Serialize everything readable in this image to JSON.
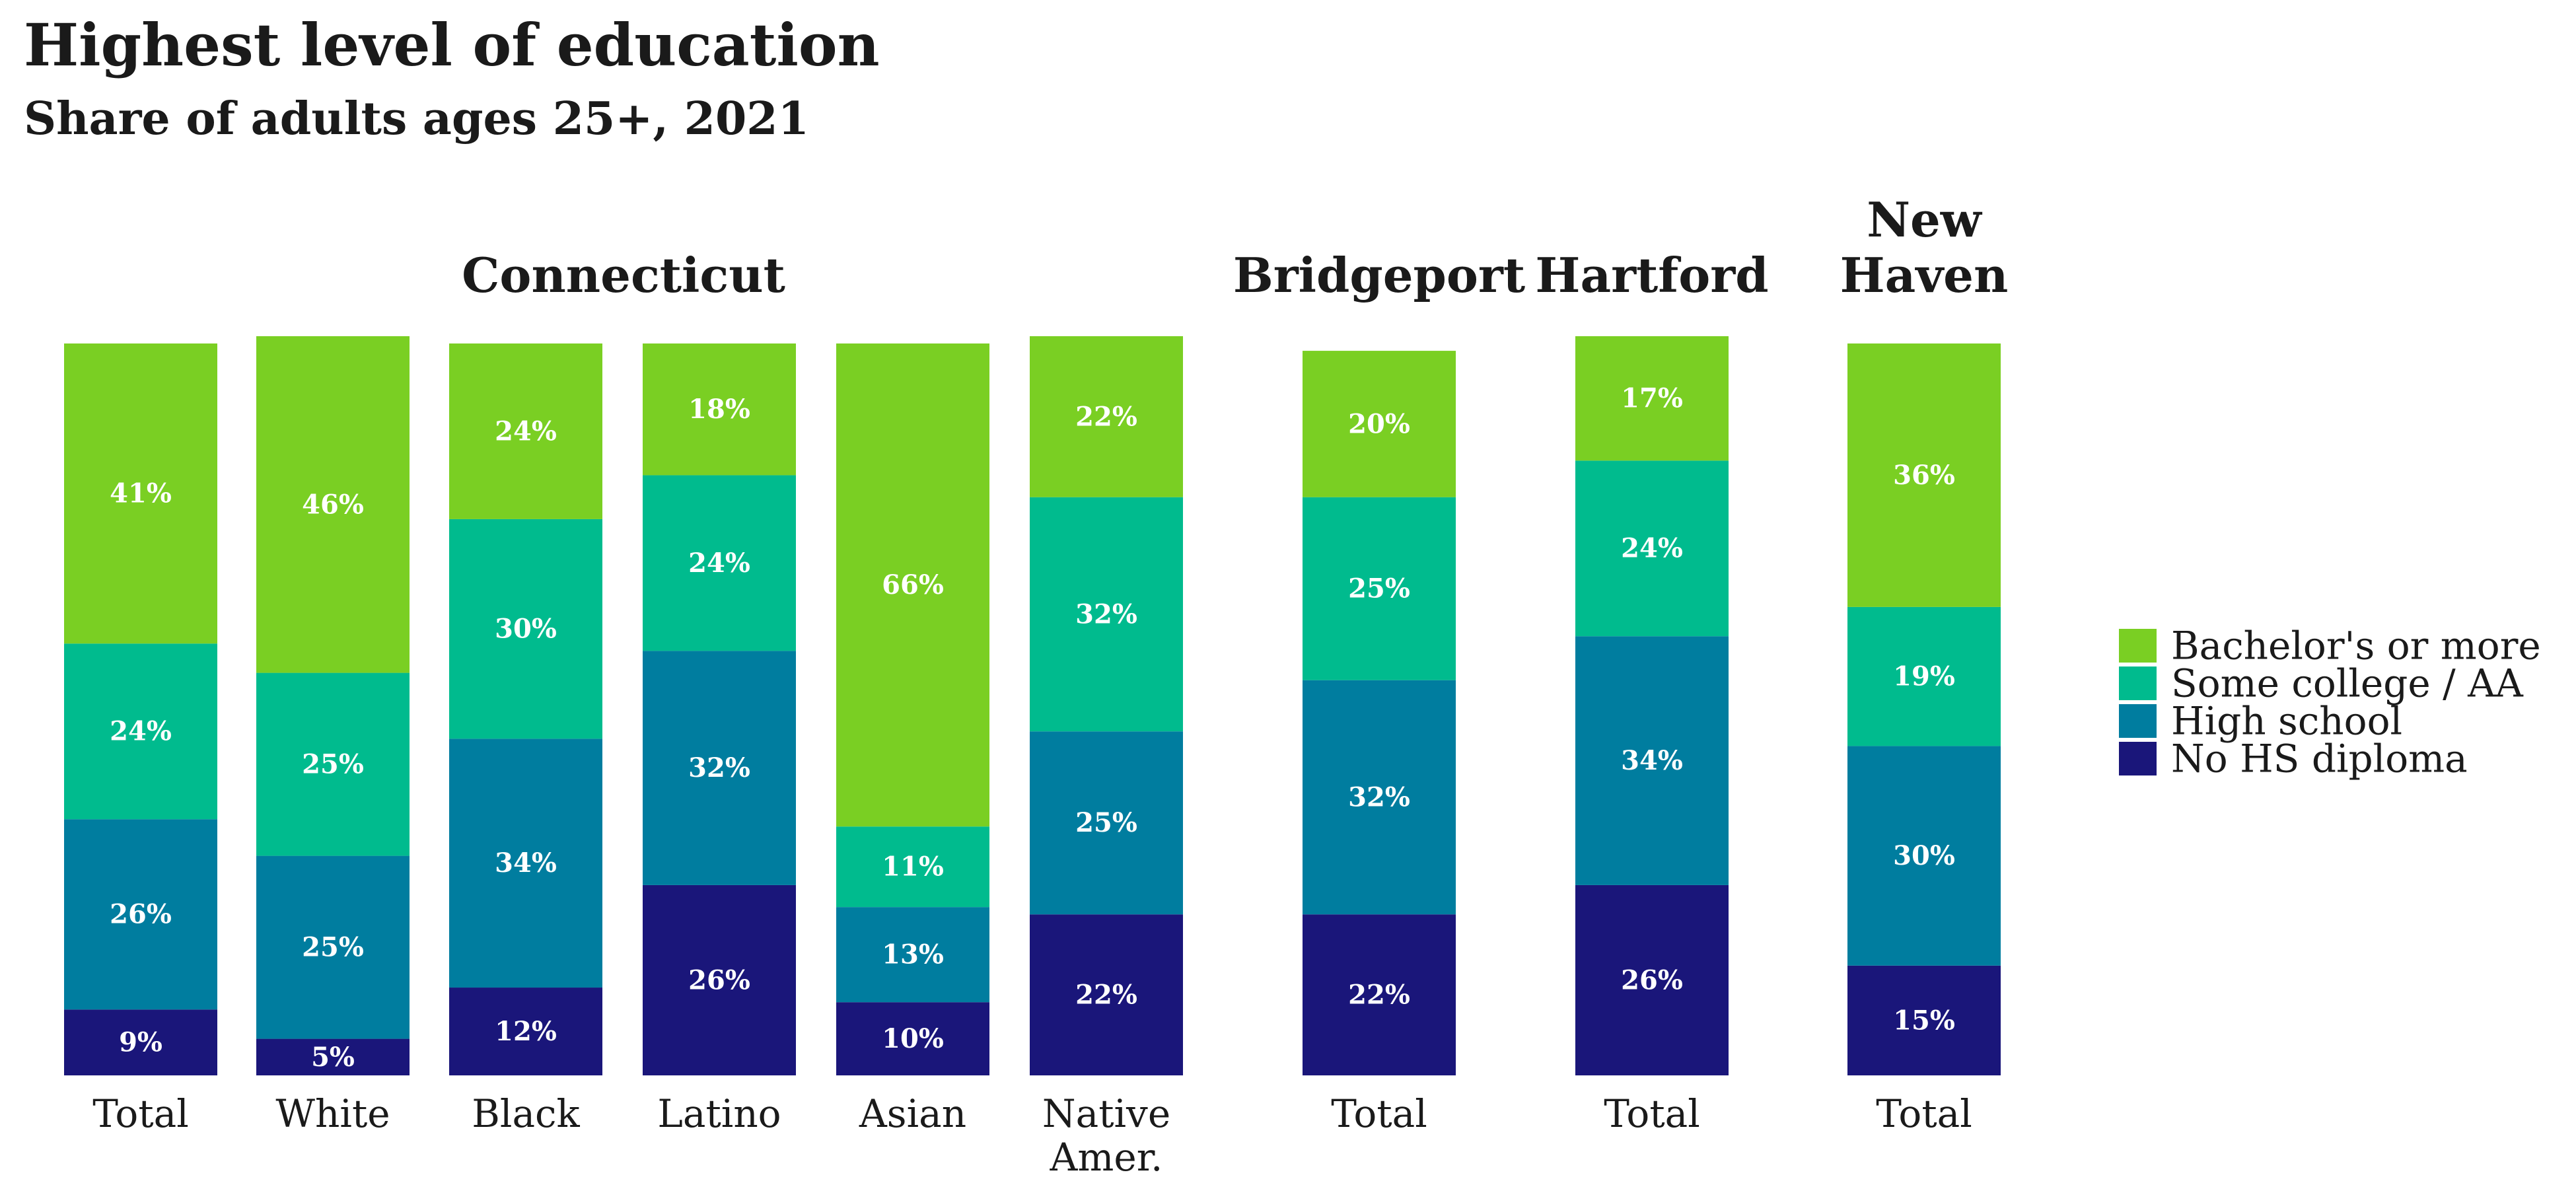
{
  "title": "Highest level of education",
  "subtitle": "Share of adults ages 25+, 2021",
  "chart_data": {
    "type": "bar",
    "stacked": true,
    "title": "Highest level of education",
    "subtitle": "Share of adults ages 25+, 2021",
    "legend_position": "right",
    "groups": [
      {
        "name": [
          "Connecticut"
        ],
        "bars": [
          0,
          1,
          2,
          3,
          4,
          5
        ]
      },
      {
        "name": [
          "Bridgeport"
        ],
        "bars": [
          6
        ]
      },
      {
        "name": [
          "Hartford"
        ],
        "bars": [
          7
        ]
      },
      {
        "name": [
          "New",
          "Haven"
        ],
        "bars": [
          8
        ]
      }
    ],
    "categories": [
      [
        "Total"
      ],
      [
        "White"
      ],
      [
        "Black"
      ],
      [
        "Latino"
      ],
      [
        "Asian"
      ],
      [
        "Native",
        "Amer."
      ],
      [
        "Total"
      ],
      [
        "Total"
      ],
      [
        "Total"
      ]
    ],
    "series": [
      {
        "name": "No HS diploma",
        "color": "#1a167a",
        "values": [
          9,
          5,
          12,
          26,
          10,
          22,
          22,
          26,
          15
        ]
      },
      {
        "name": "High school",
        "color": "#007d9f",
        "values": [
          26,
          25,
          34,
          32,
          13,
          25,
          32,
          34,
          30
        ]
      },
      {
        "name": "Some college / AA",
        "color": "#00bb8e",
        "values": [
          24,
          25,
          30,
          24,
          11,
          32,
          25,
          24,
          19
        ]
      },
      {
        "name": "Bachelor's or more",
        "color": "#7acf23",
        "values": [
          41,
          46,
          24,
          18,
          66,
          22,
          20,
          17,
          36
        ]
      }
    ],
    "legend_order": [
      "Bachelor's or more",
      "Some college / AA",
      "High school",
      "No HS diploma"
    ],
    "ylim": [
      0,
      100
    ],
    "value_suffix": "%"
  }
}
